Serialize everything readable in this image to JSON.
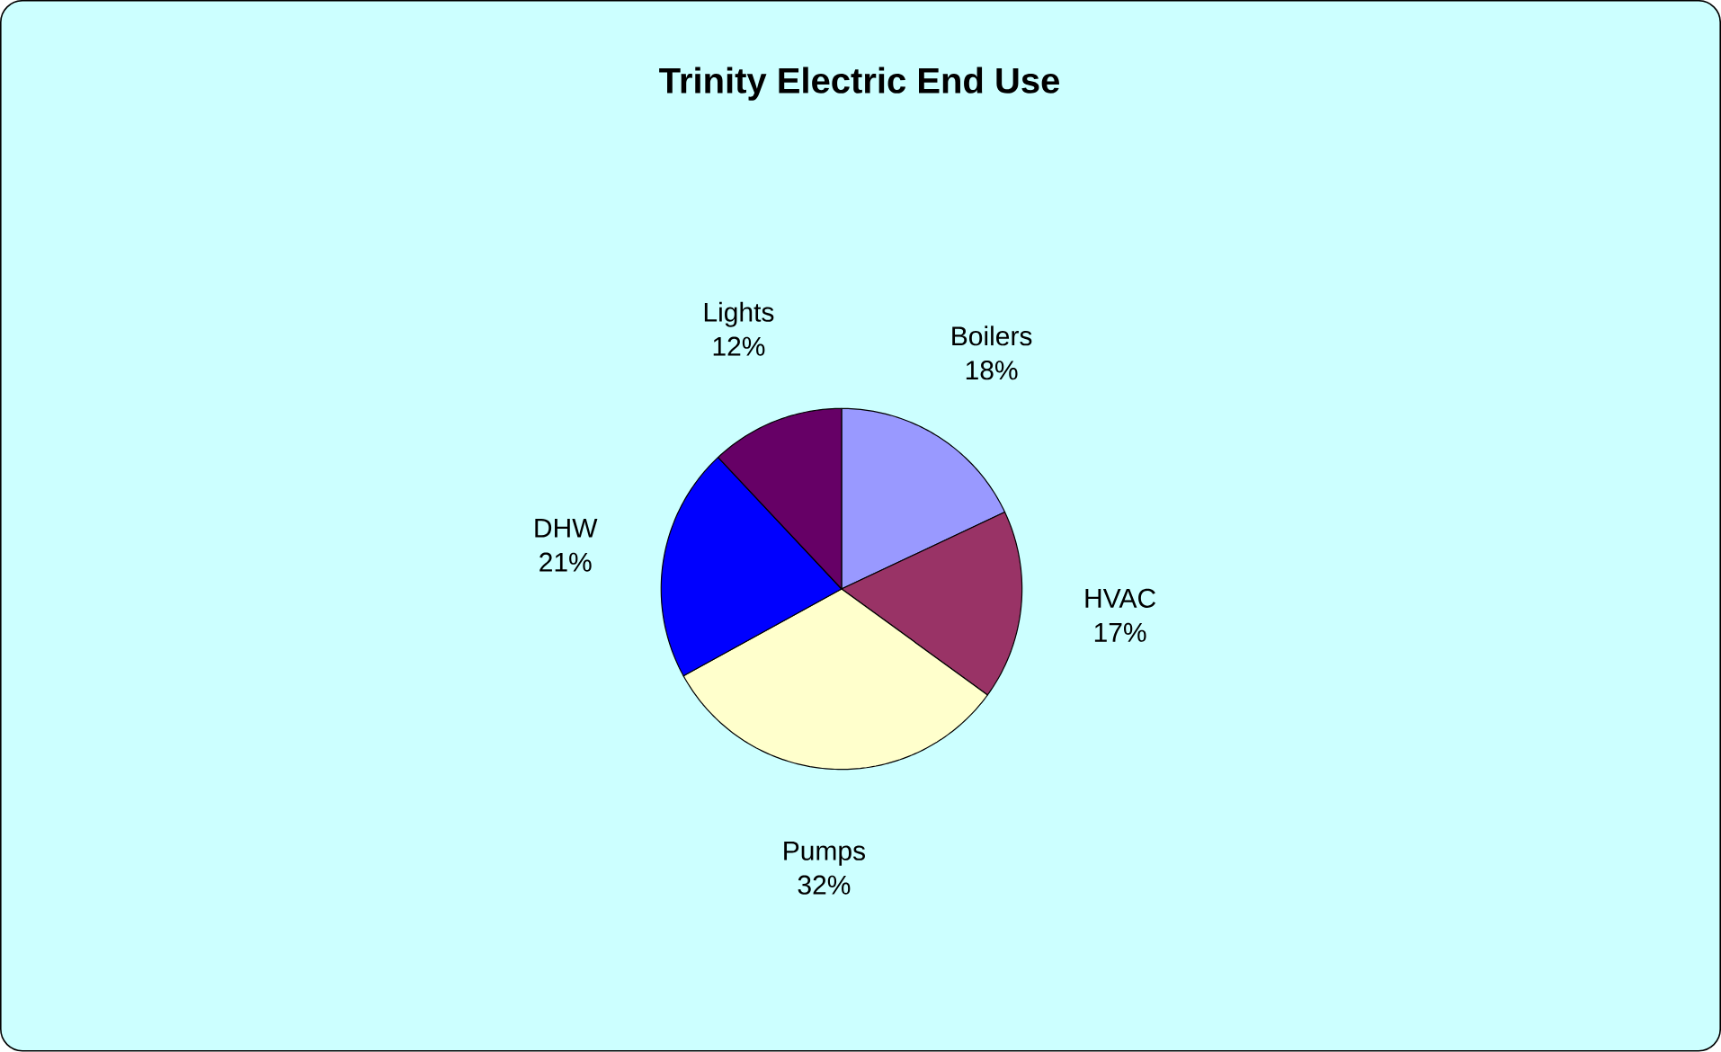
{
  "chart_data": {
    "type": "pie",
    "title": "Trinity Electric End Use",
    "categories": [
      "Boilers",
      "HVAC",
      "Pumps",
      "DHW",
      "Lights"
    ],
    "values": [
      18,
      17,
      32,
      21,
      12
    ],
    "value_labels": [
      "18%",
      "17%",
      "32%",
      "21%",
      "12%"
    ],
    "colors": [
      "#9999ff",
      "#993366",
      "#ffffcc",
      "#0000ff",
      "#660066"
    ]
  }
}
